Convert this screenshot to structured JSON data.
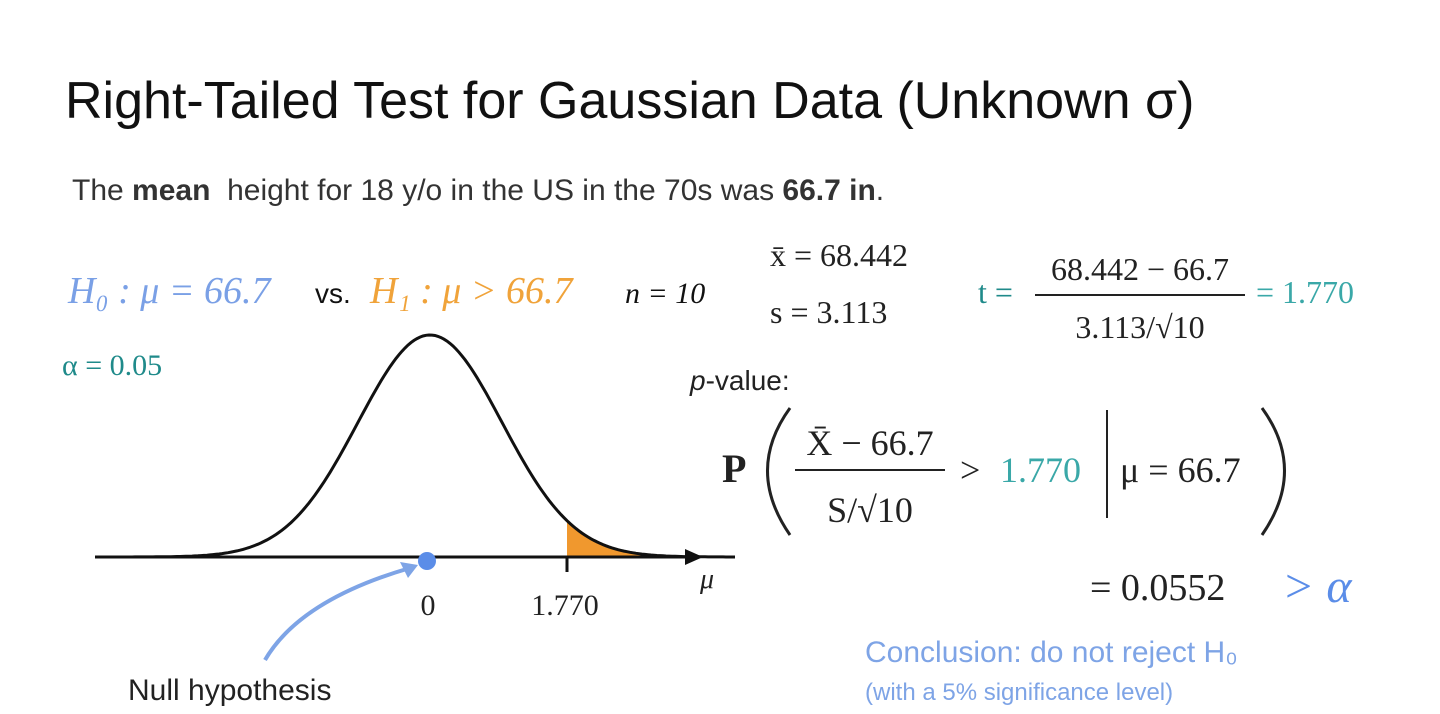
{
  "title": "Right-Tailed Test for Gaussian Data (Unknown σ)",
  "statement": {
    "parts": [
      "The ",
      "mean",
      "  height for 18 y/o in the US in the 70s was ",
      "66.7 in",
      "."
    ]
  },
  "hypotheses": {
    "null": "H₀ : μ = 66.7",
    "vs": "vs.",
    "alternative": "H₁ : μ > 66.7",
    "sample_size": "n = 10"
  },
  "alpha": "α = 0.05",
  "sample_stats": {
    "mean": "x̄ = 68.442",
    "sd": "s = 3.113"
  },
  "t_stat": {
    "lhs": "t =",
    "numerator": "68.442 − 66.7",
    "denominator": "3.113/√10",
    "result": "= 1.770"
  },
  "p_value": {
    "label_italic": "p",
    "label_rest": "-value:",
    "prob": "P",
    "numerator": "X̄ − 66.7",
    "denominator": "S/√10",
    "gt": ">",
    "t": "1.770",
    "condition": "μ = 66.7",
    "result": "= 0.0552",
    "compare": "> α"
  },
  "conclusion": {
    "main": "Conclusion: do not reject H₀",
    "note": "(with a 5% significance level)"
  },
  "graph": {
    "zero_label": "0",
    "t_label": "1.770",
    "axis_label": "μ",
    "annotation": "Null hypothesis"
  }
}
